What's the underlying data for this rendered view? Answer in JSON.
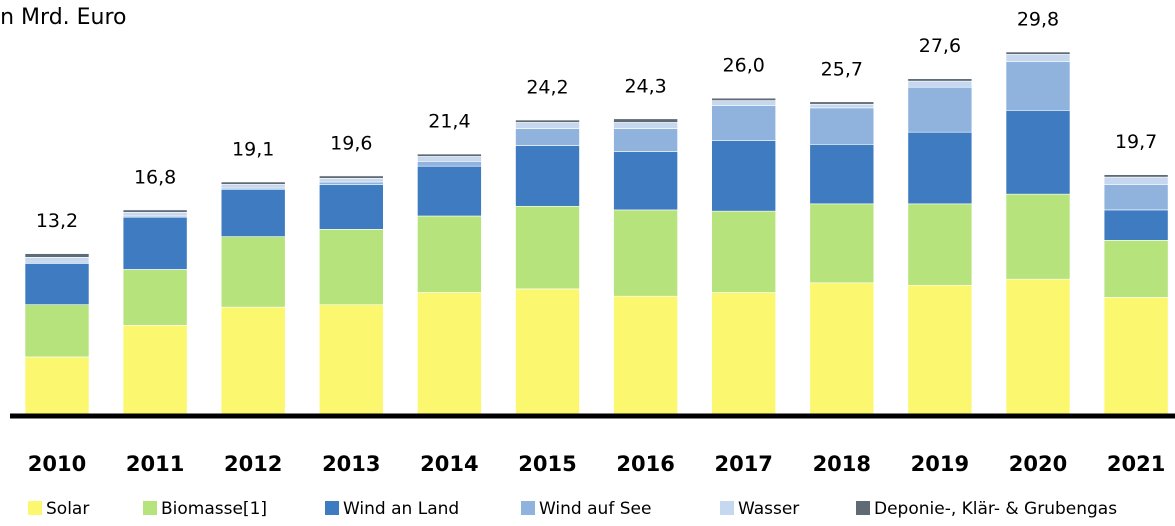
{
  "chart_data": {
    "type": "stacked_bar",
    "title": "in Mrd. Euro",
    "categories": [
      "2010",
      "2011",
      "2012",
      "2013",
      "2014",
      "2015",
      "2016",
      "2017",
      "2018",
      "2019",
      "2020",
      "2021"
    ],
    "series": [
      {
        "name": "Solar",
        "color": "#fbf76e",
        "values": [
          4.7,
          7.3,
          8.8,
          9.0,
          10.0,
          10.3,
          9.7,
          10.0,
          10.8,
          10.6,
          11.1,
          9.6
        ]
      },
      {
        "name": "Biomasse[1]",
        "color": "#b6e37b",
        "values": [
          4.3,
          4.6,
          5.8,
          6.2,
          6.3,
          6.8,
          7.1,
          6.7,
          6.5,
          6.7,
          7.0,
          4.7
        ]
      },
      {
        "name": "Wind an Land",
        "color": "#3f7bc1",
        "values": [
          3.4,
          4.3,
          3.9,
          3.7,
          4.1,
          5.0,
          4.8,
          5.8,
          4.9,
          5.9,
          6.9,
          2.5
        ]
      },
      {
        "name": "Wind auf See",
        "color": "#8fb3dd",
        "values": [
          0.1,
          0.1,
          0.1,
          0.2,
          0.4,
          1.4,
          1.9,
          2.9,
          3.0,
          3.7,
          4.0,
          2.1
        ]
      },
      {
        "name": "Wasser",
        "color": "#c6d8ef",
        "values": [
          0.4,
          0.3,
          0.3,
          0.3,
          0.4,
          0.5,
          0.5,
          0.4,
          0.3,
          0.5,
          0.6,
          0.6
        ]
      },
      {
        "name": "Deponie-, Klär- & Grubengas",
        "color": "#5f6a74",
        "values": [
          0.3,
          0.2,
          0.2,
          0.2,
          0.2,
          0.2,
          0.3,
          0.2,
          0.2,
          0.2,
          0.2,
          0.2
        ]
      }
    ],
    "totals": [
      13.2,
      16.8,
      19.1,
      19.6,
      21.4,
      24.2,
      24.3,
      26.0,
      25.7,
      27.6,
      29.8,
      19.7
    ],
    "total_labels": [
      "13,2",
      "16,8",
      "19,1",
      "19,6",
      "21,4",
      "24,2",
      "24,3",
      "26,0",
      "25,7",
      "27,6",
      "29,8",
      "19,7"
    ]
  }
}
